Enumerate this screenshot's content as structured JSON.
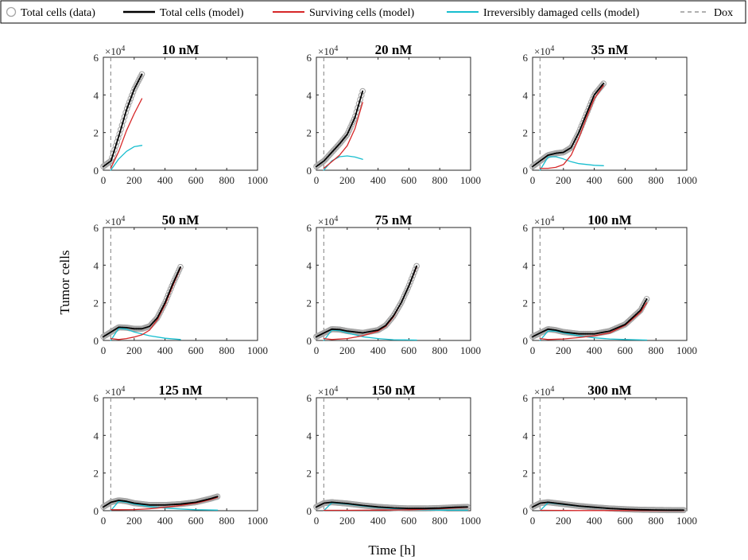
{
  "legend": {
    "data_label": "Total cells (data)",
    "total_label": "Total cells (model)",
    "surviving_label": "Surviving cells (model)",
    "damaged_label": "Irreversibly damaged cells (model)",
    "dox_label": "Dox"
  },
  "ylabel": "Tumor cells",
  "xlabel": "Time [h]",
  "y_exponent_base": "×10",
  "y_exponent_power": "4",
  "colors": {
    "data": "#a6a6a6",
    "total": "#000000",
    "surviving": "#d62728",
    "damaged": "#17becf",
    "dox": "#808080"
  },
  "chart_data": [
    {
      "type": "line",
      "title": "10 nM",
      "xlim": [
        0,
        1000
      ],
      "ylim": [
        0,
        6
      ],
      "xticks": [
        0,
        200,
        400,
        600,
        800,
        1000
      ],
      "yticks": [
        0,
        2,
        4,
        6
      ],
      "dox_time": 48,
      "total": [
        [
          0,
          0.2
        ],
        [
          50,
          0.5
        ],
        [
          100,
          1.8
        ],
        [
          150,
          3.2
        ],
        [
          200,
          4.3
        ],
        [
          250,
          5.1
        ]
      ],
      "surviving": [
        [
          48,
          0.1
        ],
        [
          100,
          1.0
        ],
        [
          150,
          2.1
        ],
        [
          200,
          3.0
        ],
        [
          250,
          3.8
        ]
      ],
      "damaged": [
        [
          48,
          0.0
        ],
        [
          100,
          0.6
        ],
        [
          150,
          1.0
        ],
        [
          200,
          1.25
        ],
        [
          250,
          1.32
        ]
      ]
    },
    {
      "type": "line",
      "title": "20 nM",
      "xlim": [
        0,
        1000
      ],
      "ylim": [
        0,
        6
      ],
      "xticks": [
        0,
        200,
        400,
        600,
        800,
        1000
      ],
      "yticks": [
        0,
        2,
        4,
        6
      ],
      "dox_time": 48,
      "total": [
        [
          0,
          0.2
        ],
        [
          50,
          0.5
        ],
        [
          100,
          0.95
        ],
        [
          150,
          1.4
        ],
        [
          200,
          1.9
        ],
        [
          250,
          2.8
        ],
        [
          300,
          4.2
        ]
      ],
      "surviving": [
        [
          48,
          0.1
        ],
        [
          100,
          0.45
        ],
        [
          150,
          0.8
        ],
        [
          200,
          1.3
        ],
        [
          250,
          2.2
        ],
        [
          300,
          3.6
        ]
      ],
      "damaged": [
        [
          48,
          0.0
        ],
        [
          100,
          0.5
        ],
        [
          150,
          0.72
        ],
        [
          200,
          0.76
        ],
        [
          250,
          0.7
        ],
        [
          300,
          0.58
        ]
      ]
    },
    {
      "type": "line",
      "title": "35 nM",
      "xlim": [
        0,
        1000
      ],
      "ylim": [
        0,
        6
      ],
      "xticks": [
        0,
        200,
        400,
        600,
        800,
        1000
      ],
      "yticks": [
        0,
        2,
        4,
        6
      ],
      "dox_time": 48,
      "total": [
        [
          0,
          0.2
        ],
        [
          50,
          0.5
        ],
        [
          100,
          0.8
        ],
        [
          150,
          0.9
        ],
        [
          200,
          0.95
        ],
        [
          250,
          1.2
        ],
        [
          300,
          2.0
        ],
        [
          350,
          3.0
        ],
        [
          400,
          4.0
        ],
        [
          460,
          4.6
        ]
      ],
      "surviving": [
        [
          48,
          0.1
        ],
        [
          100,
          0.1
        ],
        [
          150,
          0.15
        ],
        [
          200,
          0.3
        ],
        [
          250,
          0.8
        ],
        [
          300,
          1.7
        ],
        [
          350,
          2.8
        ],
        [
          400,
          3.8
        ],
        [
          460,
          4.5
        ]
      ],
      "damaged": [
        [
          48,
          0.0
        ],
        [
          100,
          0.7
        ],
        [
          150,
          0.72
        ],
        [
          200,
          0.6
        ],
        [
          250,
          0.45
        ],
        [
          300,
          0.35
        ],
        [
          400,
          0.26
        ],
        [
          460,
          0.24
        ]
      ]
    },
    {
      "type": "line",
      "title": "50 nM",
      "xlim": [
        0,
        1000
      ],
      "ylim": [
        0,
        6
      ],
      "xticks": [
        0,
        200,
        400,
        600,
        800,
        1000
      ],
      "yticks": [
        0,
        2,
        4,
        6
      ],
      "dox_time": 48,
      "total": [
        [
          0,
          0.2
        ],
        [
          50,
          0.45
        ],
        [
          100,
          0.7
        ],
        [
          150,
          0.68
        ],
        [
          200,
          0.62
        ],
        [
          250,
          0.62
        ],
        [
          300,
          0.75
        ],
        [
          350,
          1.2
        ],
        [
          400,
          2.0
        ],
        [
          450,
          3.0
        ],
        [
          500,
          3.9
        ]
      ],
      "surviving": [
        [
          48,
          0.1
        ],
        [
          100,
          0.05
        ],
        [
          150,
          0.1
        ],
        [
          200,
          0.18
        ],
        [
          250,
          0.3
        ],
        [
          300,
          0.55
        ],
        [
          350,
          1.1
        ],
        [
          400,
          1.9
        ],
        [
          450,
          2.9
        ],
        [
          500,
          3.85
        ]
      ],
      "damaged": [
        [
          48,
          0.0
        ],
        [
          100,
          0.65
        ],
        [
          150,
          0.6
        ],
        [
          200,
          0.45
        ],
        [
          300,
          0.25
        ],
        [
          400,
          0.12
        ],
        [
          500,
          0.05
        ]
      ]
    },
    {
      "type": "line",
      "title": "75 nM",
      "xlim": [
        0,
        1000
      ],
      "ylim": [
        0,
        6
      ],
      "xticks": [
        0,
        200,
        400,
        600,
        800,
        1000
      ],
      "yticks": [
        0,
        2,
        4,
        6
      ],
      "dox_time": 48,
      "total": [
        [
          0,
          0.2
        ],
        [
          50,
          0.4
        ],
        [
          100,
          0.6
        ],
        [
          150,
          0.58
        ],
        [
          200,
          0.5
        ],
        [
          300,
          0.4
        ],
        [
          400,
          0.55
        ],
        [
          450,
          0.8
        ],
        [
          500,
          1.3
        ],
        [
          550,
          2.0
        ],
        [
          600,
          2.9
        ],
        [
          650,
          3.95
        ]
      ],
      "surviving": [
        [
          48,
          0.1
        ],
        [
          100,
          0.05
        ],
        [
          200,
          0.1
        ],
        [
          300,
          0.25
        ],
        [
          400,
          0.5
        ],
        [
          450,
          0.75
        ],
        [
          500,
          1.25
        ],
        [
          550,
          2.0
        ],
        [
          600,
          2.9
        ],
        [
          650,
          3.9
        ]
      ],
      "damaged": [
        [
          48,
          0.0
        ],
        [
          100,
          0.55
        ],
        [
          150,
          0.52
        ],
        [
          200,
          0.4
        ],
        [
          300,
          0.2
        ],
        [
          400,
          0.1
        ],
        [
          500,
          0.04
        ],
        [
          650,
          0.02
        ]
      ]
    },
    {
      "type": "line",
      "title": "100 nM",
      "xlim": [
        0,
        1000
      ],
      "ylim": [
        0,
        6
      ],
      "xticks": [
        0,
        200,
        400,
        600,
        800,
        1000
      ],
      "yticks": [
        0,
        2,
        4,
        6
      ],
      "dox_time": 48,
      "total": [
        [
          0,
          0.2
        ],
        [
          50,
          0.4
        ],
        [
          100,
          0.6
        ],
        [
          150,
          0.55
        ],
        [
          200,
          0.45
        ],
        [
          300,
          0.35
        ],
        [
          400,
          0.35
        ],
        [
          500,
          0.5
        ],
        [
          600,
          0.85
        ],
        [
          700,
          1.6
        ],
        [
          740,
          2.2
        ]
      ],
      "surviving": [
        [
          48,
          0.1
        ],
        [
          100,
          0.05
        ],
        [
          200,
          0.08
        ],
        [
          300,
          0.15
        ],
        [
          400,
          0.25
        ],
        [
          500,
          0.4
        ],
        [
          600,
          0.8
        ],
        [
          700,
          1.5
        ],
        [
          740,
          2.0
        ]
      ],
      "damaged": [
        [
          48,
          0.0
        ],
        [
          100,
          0.5
        ],
        [
          150,
          0.5
        ],
        [
          200,
          0.4
        ],
        [
          300,
          0.25
        ],
        [
          400,
          0.14
        ],
        [
          500,
          0.08
        ],
        [
          600,
          0.05
        ],
        [
          740,
          0.02
        ]
      ]
    },
    {
      "type": "line",
      "title": "125 nM",
      "xlim": [
        0,
        1000
      ],
      "ylim": [
        0,
        6
      ],
      "xticks": [
        0,
        200,
        400,
        600,
        800,
        1000
      ],
      "yticks": [
        0,
        2,
        4,
        6
      ],
      "dox_time": 48,
      "total": [
        [
          0,
          0.2
        ],
        [
          50,
          0.45
        ],
        [
          100,
          0.55
        ],
        [
          150,
          0.5
        ],
        [
          200,
          0.4
        ],
        [
          300,
          0.3
        ],
        [
          400,
          0.3
        ],
        [
          500,
          0.35
        ],
        [
          600,
          0.45
        ],
        [
          700,
          0.65
        ],
        [
          740,
          0.75
        ]
      ],
      "surviving": [
        [
          48,
          0.05
        ],
        [
          100,
          0.05
        ],
        [
          200,
          0.06
        ],
        [
          300,
          0.1
        ],
        [
          400,
          0.18
        ],
        [
          500,
          0.28
        ],
        [
          600,
          0.4
        ],
        [
          700,
          0.6
        ],
        [
          740,
          0.7
        ]
      ],
      "damaged": [
        [
          48,
          0.0
        ],
        [
          100,
          0.5
        ],
        [
          150,
          0.45
        ],
        [
          200,
          0.35
        ],
        [
          300,
          0.22
        ],
        [
          400,
          0.14
        ],
        [
          500,
          0.09
        ],
        [
          600,
          0.05
        ],
        [
          740,
          0.03
        ]
      ]
    },
    {
      "type": "line",
      "title": "150 nM",
      "xlim": [
        0,
        1000
      ],
      "ylim": [
        0,
        6
      ],
      "xticks": [
        0,
        200,
        400,
        600,
        800,
        1000
      ],
      "yticks": [
        0,
        2,
        4,
        6
      ],
      "dox_time": 48,
      "total": [
        [
          0,
          0.2
        ],
        [
          50,
          0.4
        ],
        [
          100,
          0.45
        ],
        [
          200,
          0.38
        ],
        [
          300,
          0.28
        ],
        [
          400,
          0.2
        ],
        [
          500,
          0.15
        ],
        [
          600,
          0.12
        ],
        [
          700,
          0.12
        ],
        [
          800,
          0.14
        ],
        [
          900,
          0.18
        ],
        [
          980,
          0.2
        ]
      ],
      "surviving": [
        [
          48,
          0.02
        ],
        [
          200,
          0.02
        ],
        [
          400,
          0.03
        ],
        [
          600,
          0.05
        ],
        [
          800,
          0.1
        ],
        [
          980,
          0.18
        ]
      ],
      "damaged": [
        [
          48,
          0.0
        ],
        [
          100,
          0.42
        ],
        [
          200,
          0.35
        ],
        [
          300,
          0.25
        ],
        [
          400,
          0.17
        ],
        [
          500,
          0.11
        ],
        [
          600,
          0.07
        ],
        [
          800,
          0.03
        ],
        [
          980,
          0.02
        ]
      ]
    },
    {
      "type": "line",
      "title": "300 nM",
      "xlim": [
        0,
        1000
      ],
      "ylim": [
        0,
        6
      ],
      "xticks": [
        0,
        200,
        400,
        600,
        800,
        1000
      ],
      "yticks": [
        0,
        2,
        4,
        6
      ],
      "dox_time": 48,
      "total": [
        [
          0,
          0.2
        ],
        [
          50,
          0.4
        ],
        [
          100,
          0.45
        ],
        [
          200,
          0.35
        ],
        [
          300,
          0.25
        ],
        [
          400,
          0.18
        ],
        [
          500,
          0.12
        ],
        [
          600,
          0.08
        ],
        [
          700,
          0.05
        ],
        [
          800,
          0.04
        ],
        [
          900,
          0.03
        ],
        [
          980,
          0.03
        ]
      ],
      "surviving": [
        [
          48,
          0.02
        ],
        [
          300,
          0.01
        ],
        [
          600,
          0.01
        ],
        [
          980,
          0.01
        ]
      ],
      "damaged": [
        [
          48,
          0.0
        ],
        [
          100,
          0.42
        ],
        [
          200,
          0.33
        ],
        [
          300,
          0.24
        ],
        [
          400,
          0.17
        ],
        [
          500,
          0.11
        ],
        [
          600,
          0.07
        ],
        [
          700,
          0.05
        ],
        [
          800,
          0.03
        ],
        [
          980,
          0.02
        ]
      ]
    }
  ]
}
